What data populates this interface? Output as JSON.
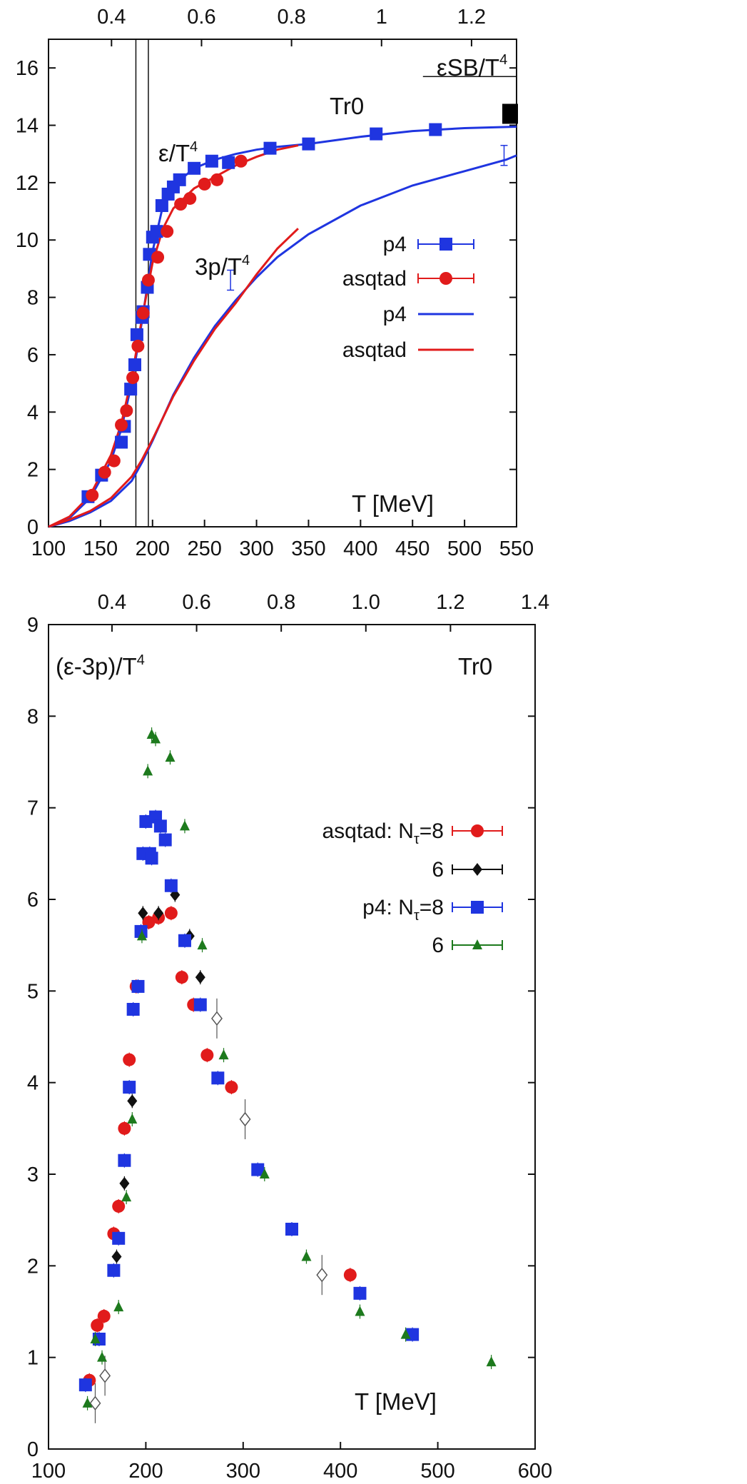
{
  "chart_data": [
    {
      "type": "line",
      "panel": "top",
      "xlabel": "T [MeV]",
      "x2label": "Tr0",
      "xlim": [
        100,
        550
      ],
      "ylim": [
        0,
        17
      ],
      "x2lim": [
        0.26,
        1.3
      ],
      "x_ticks": [
        100,
        150,
        200,
        250,
        300,
        350,
        400,
        450,
        500,
        550
      ],
      "y_ticks": [
        0,
        2,
        4,
        6,
        8,
        10,
        12,
        14,
        16
      ],
      "x2_ticks": [
        0.4,
        0.6,
        0.8,
        1,
        1.2
      ],
      "annotations": {
        "energy": "ε/T",
        "pressure": "3p/T",
        "sb": "εSB/T",
        "power": "4"
      },
      "vlines": [
        184,
        196
      ],
      "sb_limit": {
        "label": "εSB/T",
        "y": 15.7,
        "x_range": [
          460,
          550
        ]
      },
      "series": [
        {
          "name": "p4",
          "kind": "points",
          "color": "#1f35e0",
          "marker": "square",
          "x": [
            138,
            151,
            170,
            173,
            179,
            183,
            185,
            190,
            191,
            195,
            197,
            200,
            204,
            209,
            215,
            220,
            226,
            240,
            257,
            273,
            313,
            350,
            415,
            472
          ],
          "y": [
            1.05,
            1.8,
            2.95,
            3.5,
            4.8,
            5.65,
            6.7,
            7.3,
            7.5,
            8.35,
            9.5,
            10.1,
            10.3,
            11.2,
            11.6,
            11.85,
            12.1,
            12.5,
            12.75,
            12.7,
            13.2,
            13.35,
            13.7,
            13.85
          ]
        },
        {
          "name": "asqtad",
          "kind": "points",
          "color": "#e11b1b",
          "marker": "circle",
          "x": [
            142,
            154,
            163,
            170,
            175,
            181,
            186,
            191,
            196,
            205,
            214,
            227,
            236,
            250,
            262,
            285
          ],
          "y": [
            1.1,
            1.9,
            2.3,
            3.55,
            4.05,
            5.2,
            6.3,
            7.45,
            8.6,
            9.4,
            10.3,
            11.25,
            11.45,
            11.95,
            12.1,
            12.75
          ]
        },
        {
          "name": "p4",
          "kind": "curve",
          "color": "#1f35e0",
          "x": [
            100,
            120,
            140,
            160,
            170,
            180,
            190,
            200,
            210,
            220,
            240,
            260,
            280,
            300,
            320,
            350,
            400,
            450,
            500,
            550
          ],
          "y": [
            0.0,
            0.3,
            1.0,
            2.3,
            3.4,
            5.0,
            7.2,
            9.6,
            11.2,
            11.9,
            12.5,
            12.8,
            13.0,
            13.15,
            13.25,
            13.35,
            13.6,
            13.8,
            13.9,
            13.95
          ]
        },
        {
          "name": "asqtad",
          "kind": "curve",
          "color": "#e11b1b",
          "x": [
            100,
            120,
            140,
            160,
            170,
            180,
            190,
            200,
            210,
            220,
            240,
            260,
            280,
            300,
            320,
            340
          ],
          "y": [
            0.0,
            0.35,
            1.1,
            2.5,
            3.6,
            5.2,
            7.3,
            9.2,
            10.4,
            11.1,
            11.8,
            12.2,
            12.6,
            12.9,
            13.15,
            13.3
          ]
        },
        {
          "name": "p4 3p/T4",
          "kind": "curve",
          "color": "#1f35e0",
          "x": [
            100,
            120,
            140,
            160,
            180,
            190,
            200,
            210,
            220,
            240,
            260,
            280,
            300,
            320,
            350,
            400,
            450,
            500,
            540,
            550
          ],
          "y": [
            0.0,
            0.2,
            0.5,
            0.9,
            1.6,
            2.25,
            3.0,
            3.8,
            4.6,
            5.9,
            7.0,
            7.9,
            8.7,
            9.4,
            10.2,
            11.2,
            11.9,
            12.4,
            12.8,
            12.95
          ]
        },
        {
          "name": "asqtad 3p/T4",
          "kind": "curve",
          "color": "#e11b1b",
          "x": [
            100,
            120,
            140,
            160,
            180,
            190,
            200,
            210,
            220,
            240,
            260,
            280,
            300,
            320,
            340
          ],
          "y": [
            0.0,
            0.25,
            0.55,
            1.0,
            1.75,
            2.35,
            3.05,
            3.8,
            4.55,
            5.8,
            6.9,
            7.8,
            8.8,
            9.7,
            10.4
          ]
        }
      ],
      "legend": [
        "p4",
        "asqtad",
        "p4",
        "asqtad"
      ]
    },
    {
      "type": "scatter",
      "panel": "bottom",
      "xlabel": "T [MeV]",
      "x2label": "Tr0",
      "ylabel": "(ε-3p)/T",
      "xlim": [
        100,
        600
      ],
      "ylim": [
        0,
        9
      ],
      "x2lim": [
        0.25,
        1.4
      ],
      "x_ticks": [
        100,
        200,
        300,
        400,
        500,
        600
      ],
      "y_ticks": [
        0,
        1,
        2,
        3,
        4,
        5,
        6,
        7,
        8,
        9
      ],
      "x2_ticks": [
        0.4,
        0.6,
        0.8,
        1.0,
        1.2,
        1.4
      ],
      "annotations": {
        "tau": "τ",
        "nt8": "=8",
        "power": "4"
      },
      "series": [
        {
          "name": "asqtad: Nτ=8",
          "color": "#e11b1b",
          "marker": "circle",
          "x": [
            142,
            150,
            157,
            167,
            172,
            178,
            183,
            190,
            203,
            213,
            226,
            237,
            249,
            263,
            288,
            410
          ],
          "y": [
            0.75,
            1.35,
            1.45,
            2.35,
            2.65,
            3.5,
            4.25,
            5.05,
            5.75,
            5.8,
            5.85,
            5.15,
            4.85,
            4.3,
            3.95,
            1.9
          ]
        },
        {
          "name": "asqtad: Nτ=6",
          "color": "#111111",
          "marker": "diamond",
          "x": [
            170,
            178,
            186,
            197,
            213,
            230,
            245,
            256
          ],
          "y": [
            2.1,
            2.9,
            3.8,
            5.85,
            5.85,
            6.05,
            5.6,
            5.15
          ]
        },
        {
          "name": "asqtad: Nτ=6 (open)",
          "color": "#555555",
          "marker": "open-diamond",
          "x": [
            148,
            158,
            273,
            302,
            381
          ],
          "y": [
            0.5,
            0.8,
            4.7,
            3.6,
            1.9
          ]
        },
        {
          "name": "p4: Nτ=8",
          "color": "#1f35e0",
          "marker": "square",
          "x": [
            138,
            152,
            167,
            172,
            178,
            183,
            187,
            192,
            195,
            197,
            200,
            204,
            206,
            210,
            215,
            220,
            226,
            240,
            256,
            274,
            315,
            350,
            420,
            474
          ],
          "y": [
            0.7,
            1.2,
            1.95,
            2.3,
            3.15,
            3.95,
            4.8,
            5.05,
            5.65,
            6.5,
            6.85,
            6.5,
            6.45,
            6.9,
            6.8,
            6.65,
            6.15,
            5.55,
            4.85,
            4.05,
            3.05,
            2.4,
            1.7,
            1.25
          ]
        },
        {
          "name": "p4: Nτ=6",
          "color": "#1d7a1d",
          "marker": "triangle",
          "x": [
            140,
            148,
            155,
            172,
            180,
            186,
            196,
            202,
            206,
            210,
            225,
            240,
            258,
            280,
            322,
            365,
            420,
            467,
            555
          ],
          "y": [
            0.5,
            1.2,
            1.0,
            1.55,
            2.75,
            3.6,
            5.6,
            7.4,
            7.8,
            7.75,
            7.55,
            6.8,
            5.5,
            4.3,
            3.0,
            2.1,
            1.5,
            1.25,
            0.95
          ]
        }
      ],
      "legend": [
        "asqtad: N",
        "6",
        "p4: N",
        "6"
      ]
    }
  ]
}
